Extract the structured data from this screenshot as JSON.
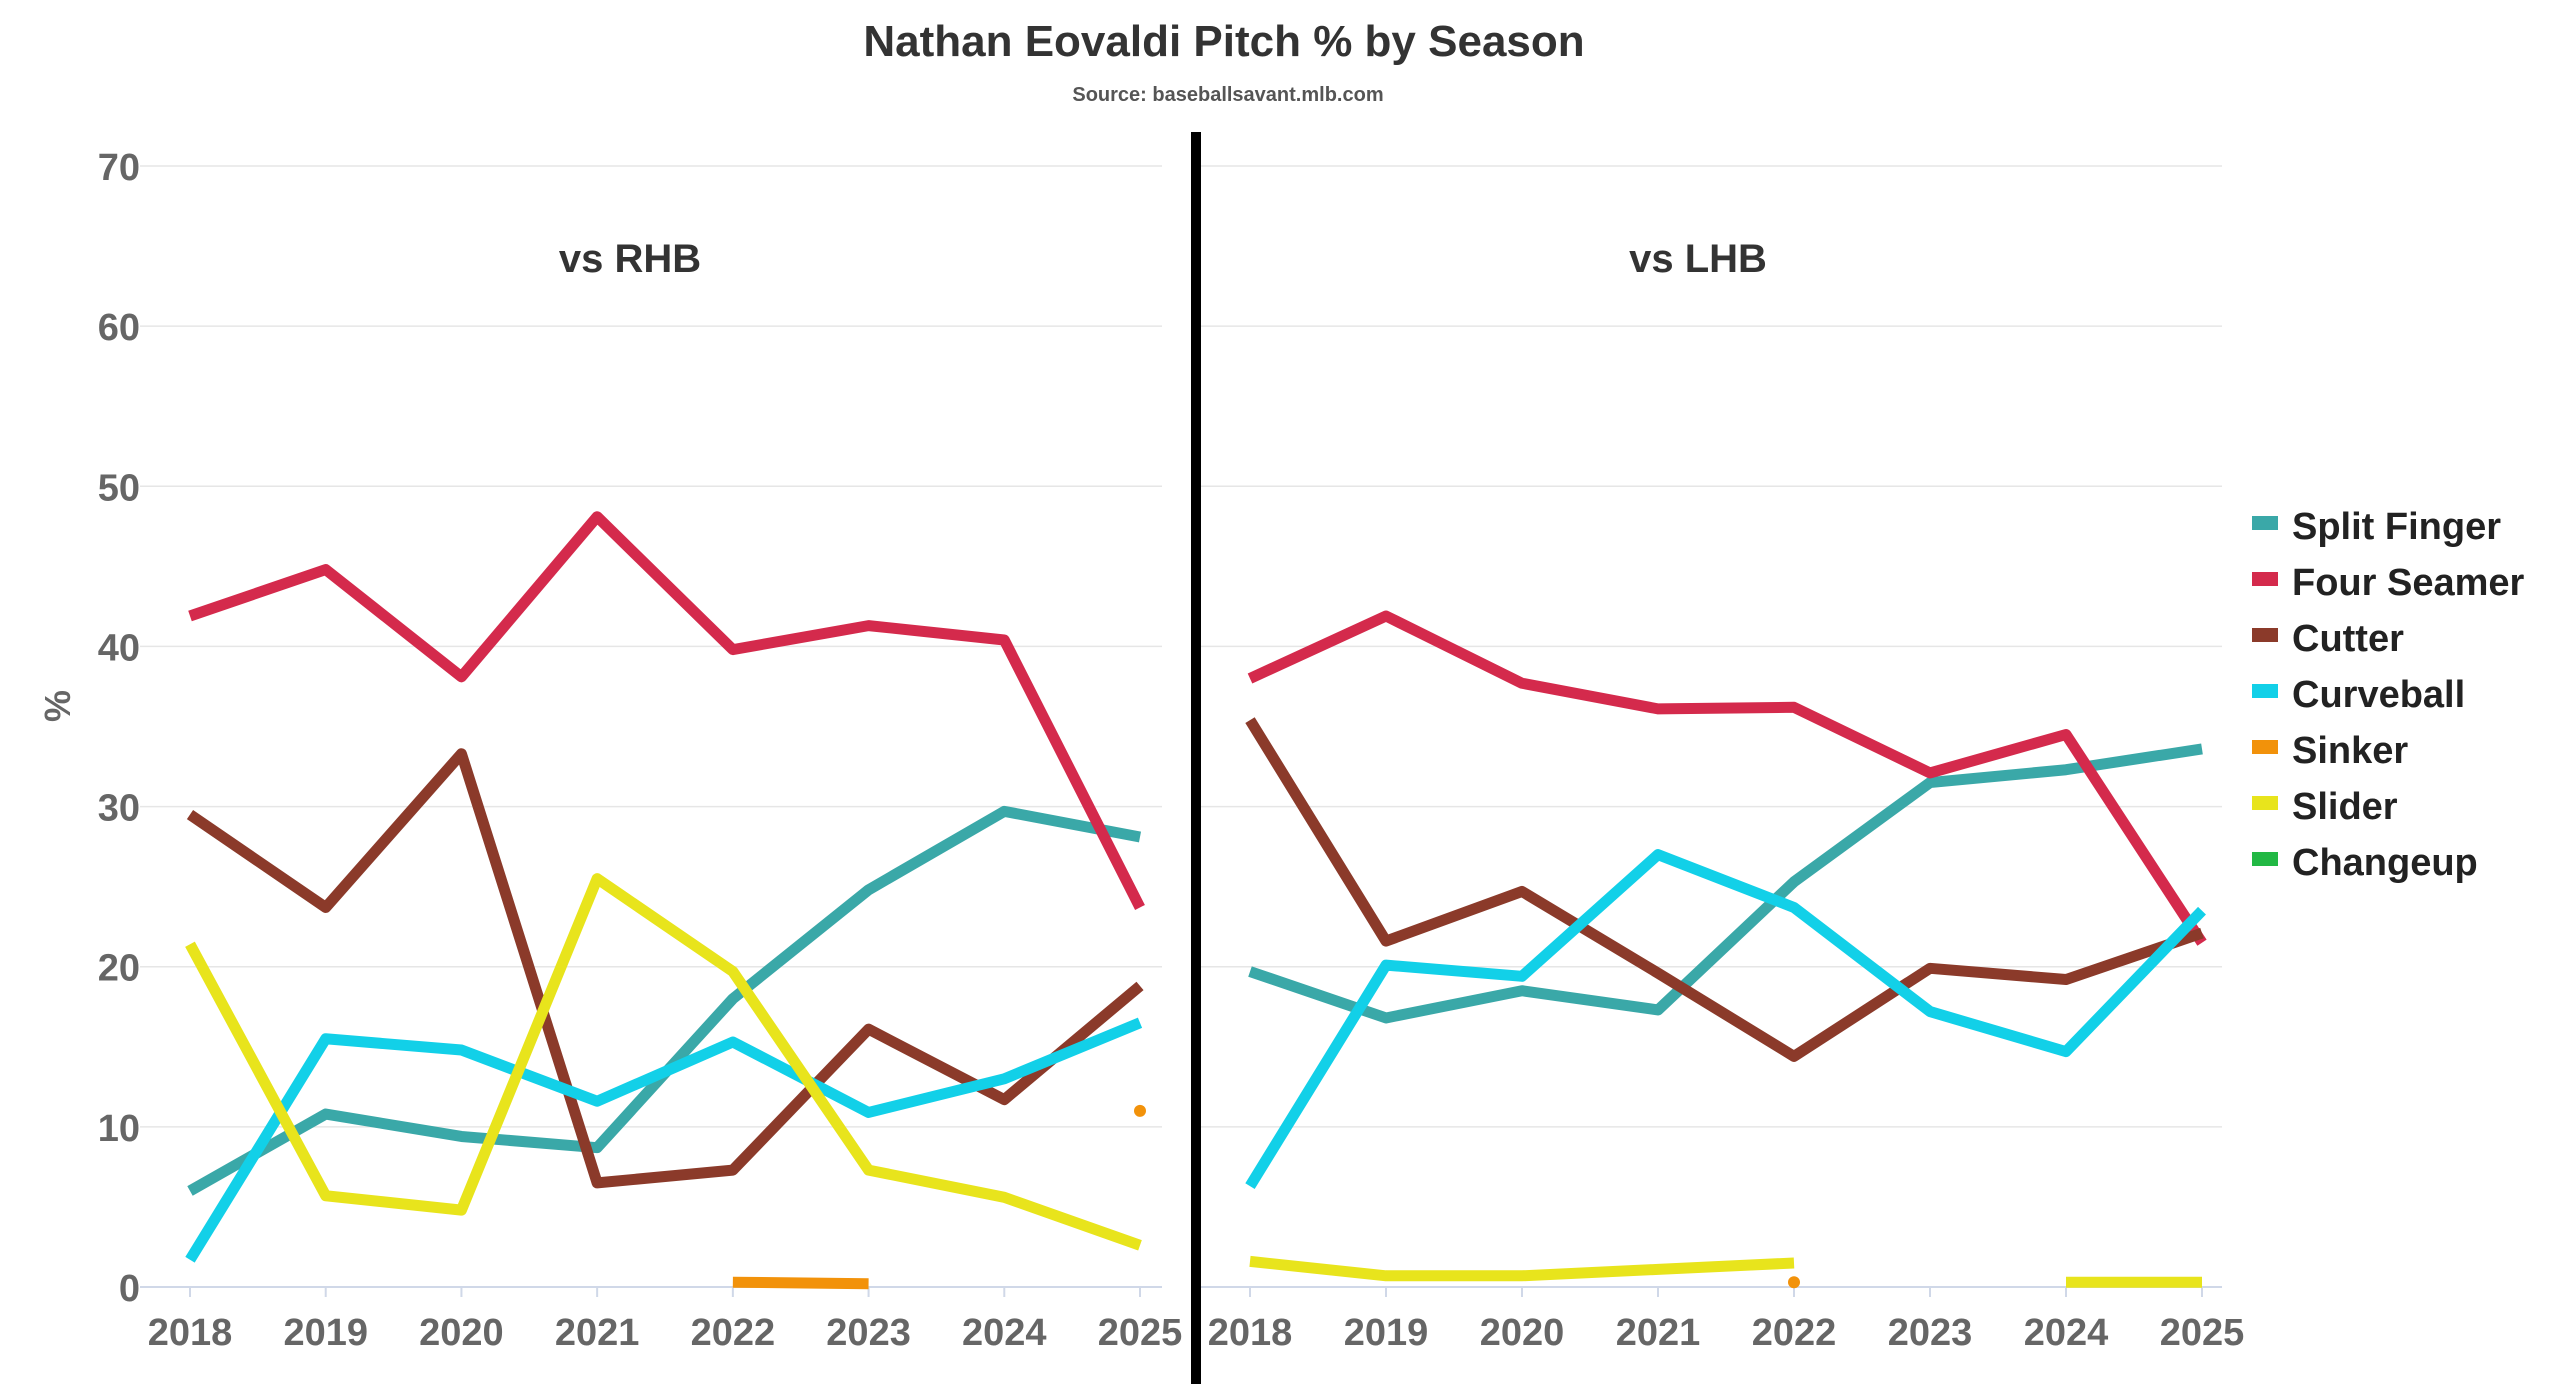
{
  "chart_data": {
    "type": "line",
    "title": "Nathan Eovaldi Pitch % by Season",
    "subtitle": "Source: baseballsavant.mlb.com",
    "ylabel": "%",
    "xlabel": "",
    "ylim": [
      0,
      70
    ],
    "yticks": [
      0,
      10,
      20,
      30,
      40,
      50,
      60,
      70
    ],
    "categories": [
      "2018",
      "2019",
      "2020",
      "2021",
      "2022",
      "2023",
      "2024",
      "2025"
    ],
    "grid": true,
    "legend": "right",
    "legend_items": [
      {
        "name": "Split Finger",
        "color": "#3aa8a8"
      },
      {
        "name": "Four Seamer",
        "color": "#d42a4c"
      },
      {
        "name": "Cutter",
        "color": "#8b3a2a"
      },
      {
        "name": "Curveball",
        "color": "#12d0e8"
      },
      {
        "name": "Sinker",
        "color": "#f2920a"
      },
      {
        "name": "Slider",
        "color": "#e8e41c"
      },
      {
        "name": "Changeup",
        "color": "#22b844"
      }
    ],
    "panels": [
      {
        "title": "vs RHB",
        "series": [
          {
            "name": "Split Finger",
            "color": "#3aa8a8",
            "values": [
              6.0,
              10.8,
              9.4,
              8.7,
              18.0,
              24.8,
              29.7,
              28.1
            ]
          },
          {
            "name": "Four Seamer",
            "color": "#d42a4c",
            "values": [
              41.9,
              44.8,
              38.1,
              48.1,
              39.8,
              41.3,
              40.4,
              23.7
            ]
          },
          {
            "name": "Cutter",
            "color": "#8b3a2a",
            "values": [
              29.5,
              23.7,
              33.3,
              6.5,
              7.3,
              16.1,
              11.7,
              18.8
            ]
          },
          {
            "name": "Curveball",
            "color": "#12d0e8",
            "values": [
              1.7,
              15.5,
              14.8,
              11.6,
              15.3,
              10.9,
              13.0,
              16.5
            ]
          },
          {
            "name": "Sinker",
            "color": "#f2920a",
            "values": [
              null,
              null,
              null,
              null,
              0.3,
              0.2,
              null,
              11.0
            ]
          },
          {
            "name": "Slider",
            "color": "#e8e41c",
            "values": [
              21.4,
              5.7,
              4.8,
              25.5,
              19.7,
              7.3,
              5.6,
              2.6
            ]
          },
          {
            "name": "Changeup",
            "color": "#22b844",
            "values": [
              null,
              null,
              null,
              null,
              null,
              null,
              null,
              null
            ]
          }
        ]
      },
      {
        "title": "vs LHB",
        "series": [
          {
            "name": "Split Finger",
            "color": "#3aa8a8",
            "values": [
              19.7,
              16.8,
              18.5,
              17.3,
              25.3,
              31.5,
              32.3,
              33.6
            ]
          },
          {
            "name": "Four Seamer",
            "color": "#d42a4c",
            "values": [
              38.0,
              41.9,
              37.7,
              36.1,
              36.2,
              32.1,
              34.5,
              21.5
            ]
          },
          {
            "name": "Cutter",
            "color": "#8b3a2a",
            "values": [
              35.4,
              21.6,
              24.7,
              19.6,
              14.4,
              19.9,
              19.2,
              22.1
            ]
          },
          {
            "name": "Curveball",
            "color": "#12d0e8",
            "values": [
              6.3,
              20.1,
              19.4,
              27.0,
              23.7,
              17.2,
              14.7,
              23.5
            ]
          },
          {
            "name": "Sinker",
            "color": "#f2920a",
            "values": [
              null,
              null,
              null,
              null,
              0.3,
              null,
              null,
              null
            ]
          },
          {
            "name": "Slider",
            "color": "#e8e41c",
            "values": [
              1.6,
              0.7,
              0.7,
              1.1,
              1.5,
              null,
              0.3,
              0.3
            ]
          },
          {
            "name": "Changeup",
            "color": "#22b844",
            "values": [
              null,
              null,
              null,
              null,
              null,
              null,
              null,
              null
            ]
          }
        ]
      }
    ]
  }
}
